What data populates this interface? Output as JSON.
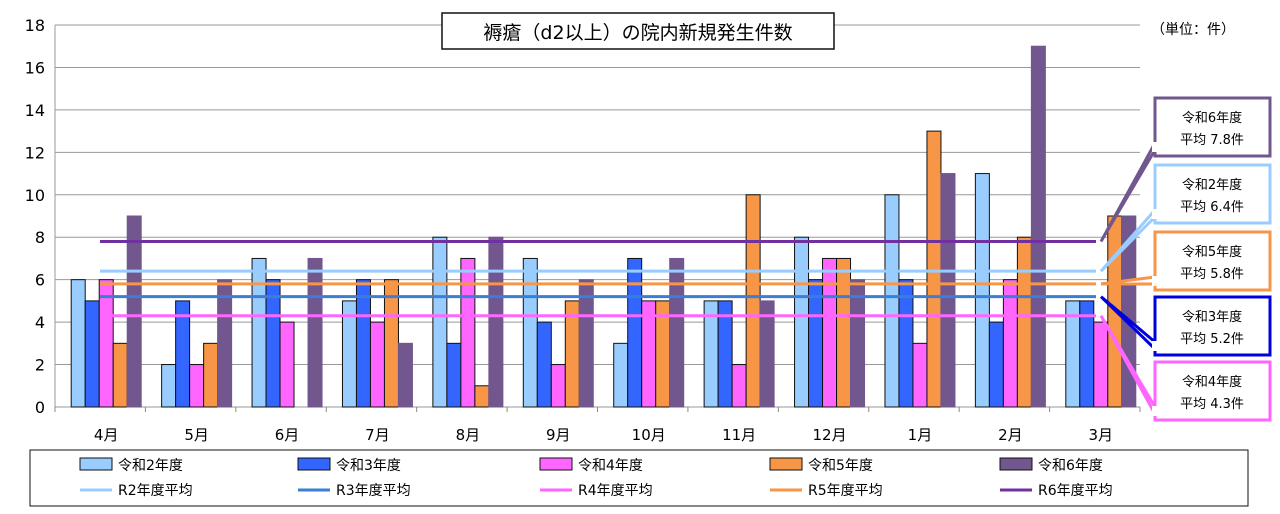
{
  "chart_data": {
    "type": "bar",
    "title": "褥瘡（d2以上）の院内新規発生件数",
    "unit": "（単位：件）",
    "categories": [
      "4月",
      "5月",
      "6月",
      "7月",
      "8月",
      "9月",
      "10月",
      "11月",
      "12月",
      "1月",
      "2月",
      "3月"
    ],
    "ylim": [
      0,
      18
    ],
    "yticks": [
      0,
      2,
      4,
      6,
      8,
      10,
      12,
      14,
      16,
      18
    ],
    "grid": true,
    "legend_position": "bottom",
    "series": [
      {
        "name": "令和2年度",
        "color": "#99ccff",
        "values": [
          6,
          2,
          7,
          5,
          8,
          7,
          3,
          5,
          8,
          10,
          11,
          5
        ]
      },
      {
        "name": "令和3年度",
        "color": "#3366ff",
        "values": [
          5,
          5,
          6,
          6,
          3,
          4,
          7,
          5,
          6,
          6,
          4,
          5
        ]
      },
      {
        "name": "令和4年度",
        "color": "#ff66ff",
        "values": [
          6,
          2,
          4,
          4,
          7,
          2,
          5,
          2,
          7,
          3,
          6,
          4
        ]
      },
      {
        "name": "令和5年度",
        "color": "#f79646",
        "values": [
          3,
          3,
          0,
          6,
          1,
          5,
          5,
          10,
          7,
          13,
          8,
          9
        ]
      },
      {
        "name": "令和6年度",
        "color": "#72578f",
        "values": [
          9,
          6,
          7,
          3,
          8,
          6,
          7,
          5,
          6,
          11,
          17,
          9
        ]
      }
    ],
    "averages": [
      {
        "name": "R2年度平均",
        "color": "#99ccff",
        "value": 6.4,
        "callout": [
          "令和2年度",
          "平均 6.4件"
        ]
      },
      {
        "name": "R3年度平均",
        "color": "#3a7fd5",
        "value": 5.2,
        "callout": [
          "令和3年度",
          "平均 5.2件"
        ],
        "box_color": "#0000dd"
      },
      {
        "name": "R4年度平均",
        "color": "#ff66ff",
        "value": 4.3,
        "callout": [
          "令和4年度",
          "平均 4.3件"
        ]
      },
      {
        "name": "R5年度平均",
        "color": "#f79646",
        "value": 5.8,
        "callout": [
          "令和5年度",
          "平均 5.8件"
        ]
      },
      {
        "name": "R6年度平均",
        "color": "#7030a0",
        "value": 7.8,
        "callout": [
          "令和6年度",
          "平均 7.8件"
        ],
        "box_color": "#72578f"
      }
    ]
  }
}
